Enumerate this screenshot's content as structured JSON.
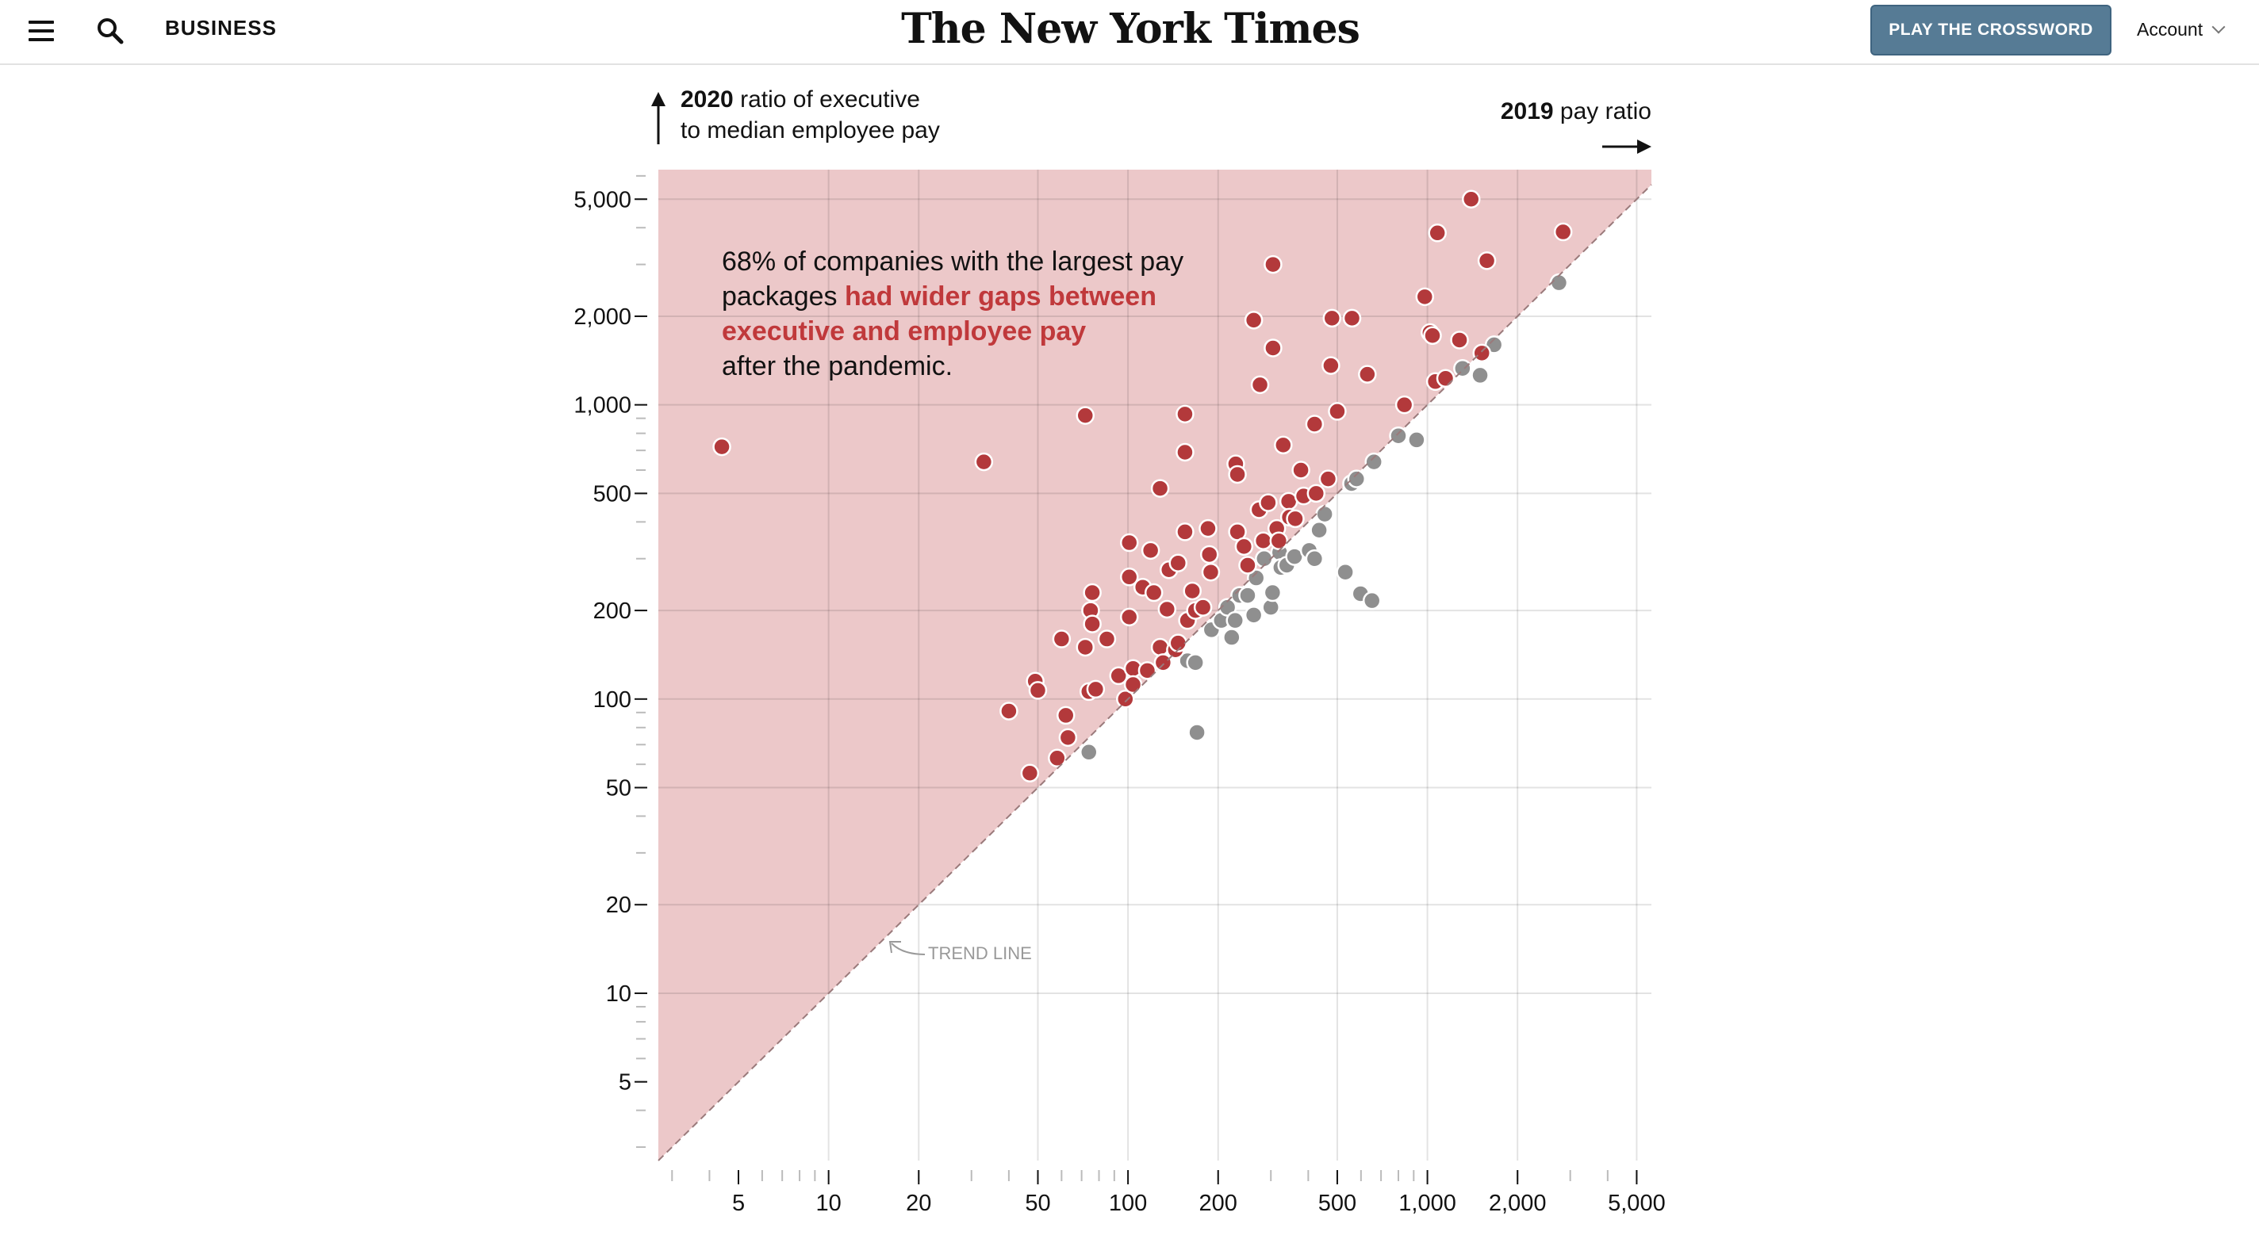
{
  "header": {
    "section": "BUSINESS",
    "masthead": "The New York Times",
    "crossword_button": "PLAY THE CROSSWORD",
    "account": "Account"
  },
  "colors": {
    "above_region": "#ecc8c9",
    "wider_gap_dot": "#b3393b",
    "narrower_gap_dot": "#8f8f8f",
    "highlight_text": "#c0393b",
    "button": "#567b95"
  },
  "annotation": {
    "line1": "68% of companies with the largest pay",
    "line2_plain": "packages ",
    "line2_highlight": "had wider gaps between",
    "line3_highlight": "executive and employee pay",
    "line4": "after the pandemic."
  },
  "trend_label": "TREND LINE",
  "chart_data": {
    "type": "scatter",
    "x_scale": "log",
    "y_scale": "log",
    "xlim": [
      2.7,
      5600
    ],
    "ylim": [
      2.7,
      6300
    ],
    "grid": true,
    "xlabel_bold": "2019",
    "xlabel": "pay ratio",
    "ylabel_bold": "2020",
    "ylabel_line1": "ratio of executive",
    "ylabel_line2": "to median employee pay",
    "x_ticks": [
      5,
      10,
      20,
      50,
      100,
      200,
      500,
      1000,
      2000,
      5000
    ],
    "x_tick_labels": [
      "5",
      "10",
      "20",
      "50",
      "100",
      "200",
      "500",
      "1,000",
      "2,000",
      "5,000"
    ],
    "y_ticks": [
      5,
      10,
      20,
      50,
      100,
      200,
      500,
      1000,
      2000,
      5000
    ],
    "y_tick_labels": [
      "5",
      "10",
      "20",
      "50",
      "100",
      "200",
      "500",
      "1,000",
      "2,000",
      "5,000"
    ],
    "trend_line": "y = x",
    "series": [
      {
        "key": "wider",
        "points": [
          [
            4.4,
            720
          ],
          [
            33,
            640
          ],
          [
            72,
            920
          ],
          [
            155,
            930
          ],
          [
            155,
            690
          ],
          [
            128,
            520
          ],
          [
            40,
            91
          ],
          [
            47,
            56
          ],
          [
            49,
            115
          ],
          [
            50,
            107
          ],
          [
            58,
            63
          ],
          [
            60,
            160
          ],
          [
            62,
            88
          ],
          [
            63,
            74
          ],
          [
            72,
            150
          ],
          [
            75,
            200
          ],
          [
            76,
            230
          ],
          [
            76,
            180
          ],
          [
            74,
            106
          ],
          [
            78,
            108
          ],
          [
            85,
            160
          ],
          [
            93,
            120
          ],
          [
            98,
            100
          ],
          [
            101,
            340
          ],
          [
            101,
            260
          ],
          [
            101,
            190
          ],
          [
            104,
            127
          ],
          [
            104,
            112
          ],
          [
            112,
            240
          ],
          [
            116,
            125
          ],
          [
            119,
            320
          ],
          [
            122,
            230
          ],
          [
            128,
            150
          ],
          [
            131,
            133
          ],
          [
            135,
            202
          ],
          [
            137,
            275
          ],
          [
            144,
            147
          ],
          [
            147,
            290
          ],
          [
            147,
            155
          ],
          [
            155,
            370
          ],
          [
            158,
            185
          ],
          [
            164,
            233
          ],
          [
            168,
            200
          ],
          [
            178,
            205
          ],
          [
            185,
            380
          ],
          [
            187,
            310
          ],
          [
            189,
            270
          ],
          [
            229,
            630
          ],
          [
            232,
            580
          ],
          [
            232,
            370
          ],
          [
            244,
            330
          ],
          [
            251,
            285
          ],
          [
            263,
            1940
          ],
          [
            274,
            440
          ],
          [
            276,
            1170
          ],
          [
            283,
            345
          ],
          [
            294,
            465
          ],
          [
            305,
            3000
          ],
          [
            305,
            1560
          ],
          [
            314,
            380
          ],
          [
            319,
            345
          ],
          [
            330,
            730
          ],
          [
            344,
            470
          ],
          [
            346,
            415
          ],
          [
            362,
            410
          ],
          [
            378,
            600
          ],
          [
            386,
            490
          ],
          [
            420,
            860
          ],
          [
            425,
            500
          ],
          [
            466,
            560
          ],
          [
            480,
            1970
          ],
          [
            476,
            1360
          ],
          [
            500,
            950
          ],
          [
            560,
            1970
          ],
          [
            630,
            1270
          ],
          [
            838,
            1000
          ],
          [
            980,
            2330
          ],
          [
            1020,
            1760
          ],
          [
            1040,
            1720
          ],
          [
            1063,
            1200
          ],
          [
            1080,
            3840
          ],
          [
            1150,
            1230
          ],
          [
            1280,
            1660
          ],
          [
            1400,
            5000
          ],
          [
            1520,
            1500
          ],
          [
            1580,
            3090
          ],
          [
            2840,
            3870
          ]
        ]
      },
      {
        "key": "narrower",
        "points": [
          [
            74,
            66
          ],
          [
            170,
            77
          ],
          [
            158,
            135
          ],
          [
            168,
            133
          ],
          [
            190,
            172
          ],
          [
            205,
            185
          ],
          [
            215,
            205
          ],
          [
            222,
            162
          ],
          [
            228,
            185
          ],
          [
            236,
            225
          ],
          [
            251,
            225
          ],
          [
            263,
            193
          ],
          [
            268,
            258
          ],
          [
            285,
            300
          ],
          [
            300,
            205
          ],
          [
            304,
            230
          ],
          [
            321,
            315
          ],
          [
            324,
            280
          ],
          [
            339,
            285
          ],
          [
            360,
            305
          ],
          [
            403,
            320
          ],
          [
            420,
            300
          ],
          [
            435,
            375
          ],
          [
            454,
            425
          ],
          [
            532,
            270
          ],
          [
            598,
            228
          ],
          [
            653,
            216
          ],
          [
            558,
            540
          ],
          [
            580,
            560
          ],
          [
            663,
            640
          ],
          [
            800,
            785
          ],
          [
            920,
            760
          ],
          [
            1310,
            1330
          ],
          [
            1500,
            1260
          ],
          [
            1670,
            1600
          ],
          [
            2750,
            2600
          ]
        ]
      }
    ]
  }
}
